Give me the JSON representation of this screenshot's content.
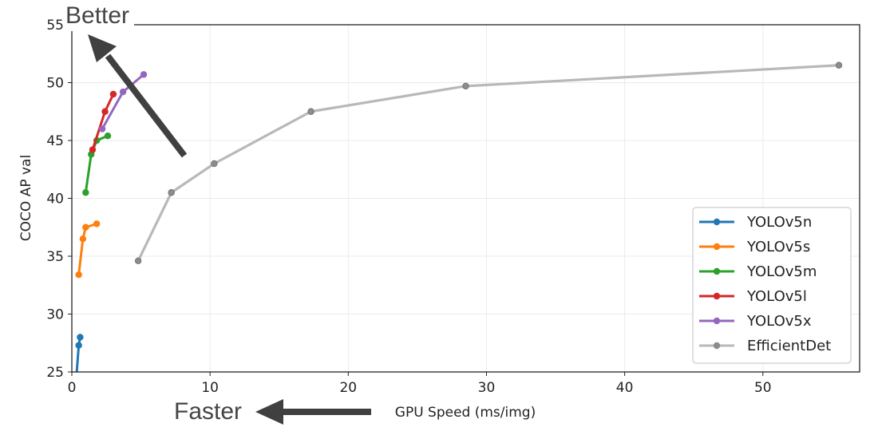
{
  "chart_data": {
    "type": "line",
    "xlabel": "GPU Speed (ms/img)",
    "ylabel": "COCO AP val",
    "xlim": [
      0,
      57
    ],
    "ylim": [
      25,
      55
    ],
    "xticks": [
      0,
      10,
      20,
      30,
      40,
      50
    ],
    "yticks": [
      25,
      30,
      35,
      40,
      45,
      50,
      55
    ],
    "grid": true,
    "legend_position": "bottom-right",
    "annotations": [
      "Better",
      "Faster"
    ],
    "series": [
      {
        "name": "YOLOv5n",
        "color": "#1f77b4",
        "x": [
          0.2,
          0.5,
          0.6
        ],
        "y": [
          22.5,
          27.3,
          28.0
        ]
      },
      {
        "name": "YOLOv5s",
        "color": "#ff7f0e",
        "x": [
          0.5,
          0.8,
          1.0,
          1.8
        ],
        "y": [
          33.4,
          36.5,
          37.5,
          37.8
        ]
      },
      {
        "name": "YOLOv5m",
        "color": "#2ca02c",
        "x": [
          1.0,
          1.4,
          1.8,
          2.6
        ],
        "y": [
          40.5,
          43.8,
          45.0,
          45.4
        ]
      },
      {
        "name": "YOLOv5l",
        "color": "#d62728",
        "x": [
          1.5,
          2.4,
          3.0
        ],
        "y": [
          44.2,
          47.5,
          49.0
        ]
      },
      {
        "name": "YOLOv5x",
        "color": "#9467bd",
        "x": [
          2.2,
          3.7,
          5.2
        ],
        "y": [
          46.0,
          49.2,
          50.7
        ]
      },
      {
        "name": "EfficientDet",
        "color": "#b8b8b8",
        "x": [
          4.8,
          7.2,
          10.3,
          17.3,
          28.5,
          55.5
        ],
        "y": [
          34.6,
          40.5,
          43.0,
          47.5,
          49.7,
          51.5
        ]
      }
    ]
  }
}
